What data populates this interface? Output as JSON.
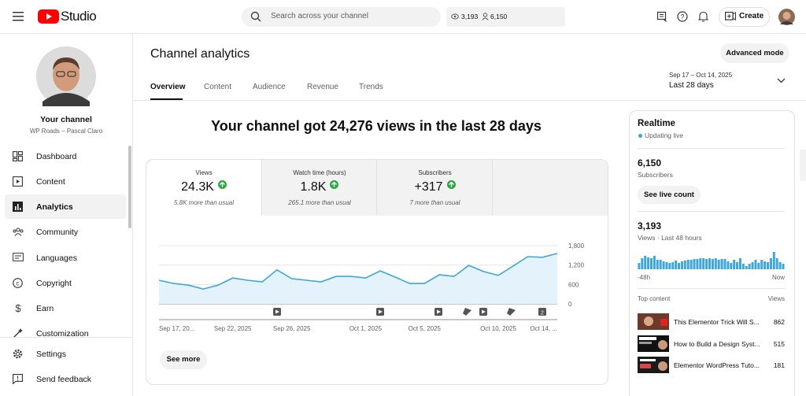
{
  "header": {
    "logo": "Studio",
    "search_placeholder": "Search across your channel",
    "views_stat": "3,193",
    "subs_stat": "6,150",
    "create": "Create"
  },
  "sidebar": {
    "channel_title": "Your channel",
    "channel_name": "WP Roads – Pascal Claro",
    "nav": [
      "Dashboard",
      "Content",
      "Analytics",
      "Community",
      "Languages",
      "Copyright",
      "Earn",
      "Customization"
    ],
    "bottom": [
      "Settings",
      "Send feedback"
    ]
  },
  "main": {
    "title": "Channel analytics",
    "tabs": [
      "Overview",
      "Content",
      "Audience",
      "Revenue",
      "Trends"
    ],
    "advanced": "Advanced mode",
    "date_range": "Sep 17 – Oct 14, 2025",
    "period": "Last 28 days",
    "headline": "Your channel got 24,276 views in the last 28 days",
    "metrics": [
      {
        "label": "Views",
        "value": "24.3K",
        "note": "5.8K more than usual"
      },
      {
        "label": "Watch time (hours)",
        "value": "1.8K",
        "note": "265.1 more than usual"
      },
      {
        "label": "Subscribers",
        "value": "+317",
        "note": "7 more than usual"
      }
    ],
    "see_more": "See more"
  },
  "realtime": {
    "title": "Realtime",
    "status": "Updating live",
    "subscribers": "6,150",
    "subscribers_label": "Subscribers",
    "live_button": "See live count",
    "views": "3,193",
    "views_label": "Views · Last 48 hours",
    "top_content": "Top content",
    "views_column": "Views",
    "videos": [
      {
        "title": "This Elementor Trick Will S...",
        "views": "862"
      },
      {
        "title": "How to Build a Design Syst...",
        "views": "515"
      },
      {
        "title": "Elementor WordPress Tuto...",
        "views": "181"
      }
    ]
  },
  "chart_data": [
    {
      "type": "line",
      "categories": [
        "Sep 17, 20...",
        null,
        null,
        null,
        null,
        "Sep 22, 2025",
        null,
        null,
        null,
        "Sep 26, 2025",
        null,
        null,
        null,
        null,
        "Oct 1, 2025",
        null,
        null,
        null,
        "Oct 5, 2025",
        null,
        null,
        null,
        null,
        "Oct 10, 2025",
        null,
        null,
        null,
        "Oct 14, ..."
      ],
      "series": [
        {
          "values": [
            730,
            630,
            580,
            460,
            580,
            800,
            730,
            680,
            1050,
            780,
            730,
            680,
            850,
            850,
            800,
            1020,
            830,
            630,
            630,
            900,
            850,
            1190,
            1000,
            880,
            1170,
            1460,
            1440,
            1560
          ],
          "color": "#3ea6d8"
        }
      ],
      "area": true,
      "area_color": "#e4f3fb",
      "ylim": [
        0,
        1800
      ],
      "yticks": [
        0,
        600,
        {
          "value": 1200,
          "label": "1,200"
        },
        {
          "value": 1800,
          "label": "1,800"
        }
      ],
      "grid": true,
      "annotations": [
        "2"
      ]
    },
    {
      "type": "bar",
      "categories": [
        "-48h",
        null,
        null,
        null,
        null,
        null,
        null,
        null,
        null,
        null,
        null,
        null,
        null,
        null,
        null,
        null,
        null,
        null,
        null,
        null,
        null,
        null,
        null,
        null,
        null,
        null,
        null,
        null,
        null,
        null,
        null,
        null,
        null,
        null,
        null,
        null,
        null,
        null,
        null,
        null,
        null,
        null,
        null,
        null,
        null,
        null,
        null,
        "Now"
      ],
      "values": [
        48,
        84,
        102,
        90,
        84,
        102,
        72,
        72,
        60,
        54,
        48,
        54,
        66,
        48,
        60,
        66,
        72,
        72,
        78,
        78,
        84,
        84,
        78,
        84,
        78,
        84,
        72,
        78,
        78,
        60,
        48,
        72,
        54,
        84,
        42,
        24,
        42,
        54,
        72,
        48,
        72,
        60,
        54,
        84,
        132,
        84,
        54,
        42
      ],
      "color": "#3ea6d8"
    }
  ]
}
